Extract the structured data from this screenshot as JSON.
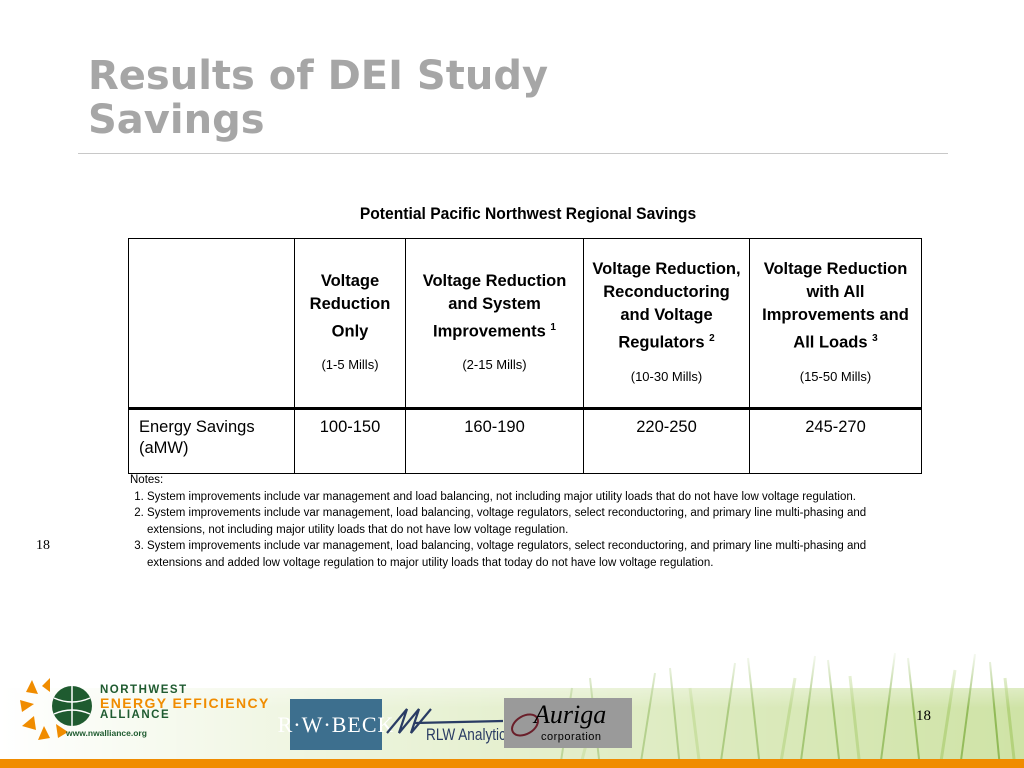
{
  "slide": {
    "title_line1": "Results of DEI Study",
    "title_line2": "Savings",
    "page_number_left": "18",
    "page_number_right": "18"
  },
  "table": {
    "title": "Potential Pacific Northwest Regional Savings",
    "columns": [
      {
        "label": "Voltage Reduction Only",
        "sup": "",
        "sub": "(1-5 Mills)"
      },
      {
        "label": "Voltage Reduction and System Improvements",
        "sup": "1",
        "sub": "(2-15 Mills)"
      },
      {
        "label": "Voltage Reduction, Reconductoring and Voltage Regulators",
        "sup": "2",
        "sub": "(10-30 Mills)"
      },
      {
        "label": "Voltage Reduction with All Improvements and All Loads",
        "sup": "3",
        "sub": "(15-50 Mills)"
      }
    ],
    "rows": [
      {
        "label": "Energy Savings (aMW)",
        "values": [
          "100-150",
          "160-190",
          "220-250",
          "245-270"
        ]
      }
    ]
  },
  "notes": {
    "heading": "Notes:",
    "items": [
      "System improvements include var management and load balancing, not including major utility loads that do not have low voltage regulation.",
      "System improvements include var management, load balancing, voltage regulators, select reconductoring, and primary line multi-phasing and extensions, not including major utility loads that do not have low voltage regulation.",
      "System improvements include var management, load balancing, voltage regulators, select reconductoring, and primary line multi-phasing and extensions and added low voltage regulation to major utility loads that today do not have low voltage regulation."
    ]
  },
  "footer": {
    "neea_line1": "NORTHWEST",
    "neea_line2": "ENERGY EFFICIENCY",
    "neea_line3": "ALLIANCE",
    "neea_url": "www.nwalliance.org",
    "rwbeck": "R·W·BECK",
    "rlw": "RLW Analytics",
    "auriga": "Auriga",
    "auriga_sub": "corporation",
    "colors": {
      "accent_orange": "#f08c00",
      "neea_green": "#1f5b30",
      "title_gray": "#a6a6a6"
    }
  }
}
